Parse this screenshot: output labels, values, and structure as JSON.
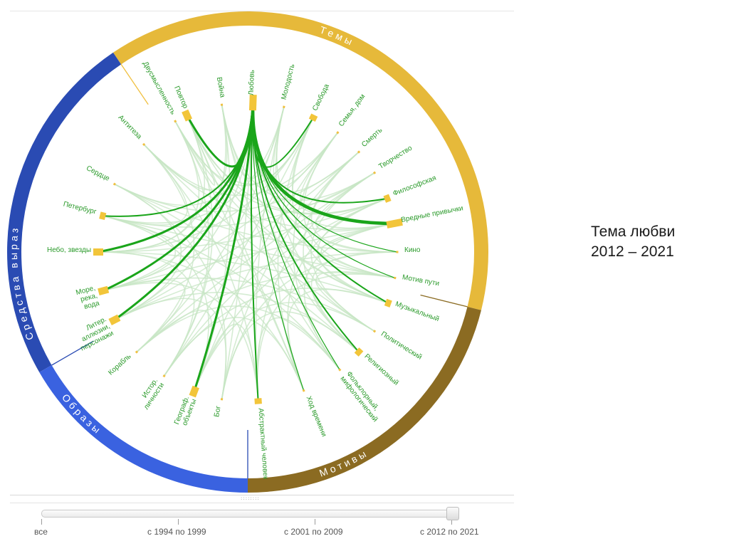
{
  "caption": {
    "line1": "Тема любви",
    "line2": "2012 – 2021"
  },
  "groups": [
    {
      "label": "Средства выраз",
      "color": "#2a4bb3"
    },
    {
      "label": "Темы",
      "color": "#e6b93a"
    },
    {
      "label": "Мотивы",
      "color": "#8b6b22"
    },
    {
      "label": "Образы",
      "color": "#3a62e0"
    }
  ],
  "hub": "Любовь",
  "colors": {
    "link_main": "#1aa51a",
    "link_bg": "#c7e6c4",
    "label_text": "#2a9a2a",
    "node_highlight": "#f2c53a",
    "node_thin": "#f0c040"
  },
  "nodes": [
    {
      "label": "Повтор",
      "strength": 3
    },
    {
      "label": "Война",
      "strength": 1
    },
    {
      "label": "Любовь",
      "strength": 4
    },
    {
      "label": "Молодость",
      "strength": 1
    },
    {
      "label": "Свобода",
      "strength": 2
    },
    {
      "label": "Семья, дом",
      "strength": 1
    },
    {
      "label": "Смерть",
      "strength": 1
    },
    {
      "label": "Творчество",
      "strength": 1
    },
    {
      "label": "Философская",
      "strength": 2
    },
    {
      "label": "Вредные привычки",
      "strength": 4
    },
    {
      "label": "Кино",
      "strength": 1
    },
    {
      "label": "Мотив пути",
      "strength": 1
    },
    {
      "label": "Музыкальный",
      "strength": 2
    },
    {
      "label": "Политический",
      "strength": 1
    },
    {
      "label": "Религиозный",
      "strength": 2
    },
    {
      "label": "Фольклорный, мифологический",
      "strength": 1
    },
    {
      "label": "Ход времени",
      "strength": 1
    },
    {
      "label": "Абстрактный человек",
      "strength": 2
    },
    {
      "label": "Бог",
      "strength": 1
    },
    {
      "label": "Географ. объекты",
      "strength": 3
    },
    {
      "label": "Истор. личности",
      "strength": 1
    },
    {
      "label": "Корабль",
      "strength": 1
    },
    {
      "label": "Литер. аллюзии, персонажи",
      "strength": 3
    },
    {
      "label": "Море, река, вода",
      "strength": 3
    },
    {
      "label": "Небо, звезды",
      "strength": 3
    },
    {
      "label": "Петербург",
      "strength": 2
    },
    {
      "label": "Сердце",
      "strength": 1
    },
    {
      "label": "Антитеза",
      "strength": 1
    },
    {
      "label": "Двусмысленность",
      "strength": 1
    }
  ],
  "timeline": {
    "ticks": [
      "все",
      "с 1994 по 1999",
      "с 2001 по 2009",
      "с 2012 по 2021"
    ],
    "selected": "с 2012 по 2021"
  }
}
